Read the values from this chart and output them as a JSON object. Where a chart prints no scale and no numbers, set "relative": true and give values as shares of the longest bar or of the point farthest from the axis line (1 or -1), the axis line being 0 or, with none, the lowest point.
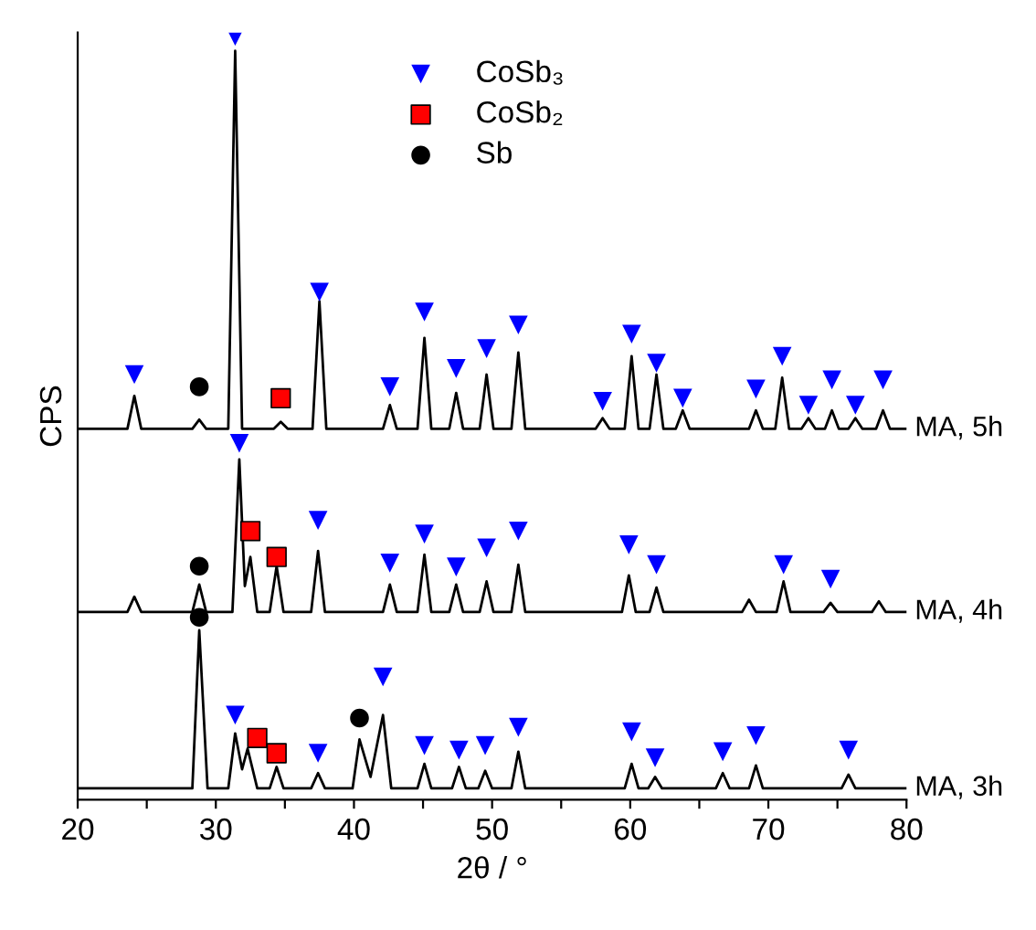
{
  "chart_data": {
    "type": "line",
    "relative": true,
    "xlabel": "2θ / °",
    "ylabel": "CPS",
    "xlim": [
      20,
      80
    ],
    "xticks": [
      20,
      {
        "value": 25,
        "label": null
      },
      30,
      {
        "value": 35,
        "label": null
      },
      40,
      {
        "value": 45,
        "label": null
      },
      50,
      {
        "value": 55,
        "label": null
      },
      60,
      {
        "value": 65,
        "label": null
      },
      70,
      {
        "value": 75,
        "label": null
      },
      80
    ],
    "grid": false,
    "legend": "top right",
    "series": [
      {
        "name": "MA, 5h",
        "color": "#000000",
        "marker": "none",
        "line_style": "solid",
        "x": [
          20,
          23.6,
          24.1,
          24.6,
          28.3,
          28.8,
          29.3,
          30.9,
          31.4,
          31.9,
          34.2,
          34.7,
          35.2,
          37.0,
          37.5,
          38.0,
          42.1,
          42.6,
          43.1,
          44.6,
          45.1,
          45.6,
          46.9,
          47.4,
          47.9,
          49.1,
          49.6,
          50.1,
          51.4,
          51.9,
          52.4,
          57.5,
          58.0,
          58.5,
          59.6,
          60.1,
          60.6,
          61.4,
          61.9,
          62.4,
          63.3,
          63.8,
          64.3,
          68.6,
          69.1,
          69.6,
          70.5,
          71.0,
          71.5,
          72.4,
          72.9,
          73.4,
          74.1,
          74.6,
          75.1,
          75.8,
          76.3,
          76.8,
          77.8,
          78.3,
          78.8,
          80
        ],
        "values": [
          0.486,
          0.486,
          0.529,
          0.486,
          0.486,
          0.498,
          0.486,
          0.486,
          0.981,
          0.486,
          0.486,
          0.495,
          0.486,
          0.486,
          0.653,
          0.486,
          0.486,
          0.517,
          0.486,
          0.486,
          0.605,
          0.486,
          0.486,
          0.533,
          0.486,
          0.486,
          0.557,
          0.486,
          0.486,
          0.586,
          0.486,
          0.486,
          0.5,
          0.486,
          0.486,
          0.581,
          0.486,
          0.486,
          0.557,
          0.486,
          0.486,
          0.51,
          0.486,
          0.486,
          0.51,
          0.486,
          0.486,
          0.553,
          0.486,
          0.486,
          0.5,
          0.486,
          0.486,
          0.51,
          0.486,
          0.486,
          0.5,
          0.486,
          0.486,
          0.51,
          0.486,
          0.486
        ]
      },
      {
        "name": "MA, 4h",
        "color": "#000000",
        "marker": "none",
        "line_style": "solid",
        "x": [
          20,
          23.6,
          24.1,
          24.6,
          28.3,
          28.8,
          29.3,
          31.2,
          31.7,
          32.1,
          32.5,
          33.0,
          33.9,
          34.4,
          34.9,
          36.9,
          37.4,
          37.9,
          42.1,
          42.6,
          43.1,
          44.6,
          45.1,
          45.6,
          46.9,
          47.4,
          47.9,
          49.1,
          49.6,
          50.1,
          51.4,
          51.9,
          52.4,
          59.4,
          59.9,
          60.4,
          61.4,
          61.9,
          62.4,
          68.1,
          68.6,
          69.1,
          70.6,
          71.1,
          71.6,
          74.0,
          74.5,
          75.0,
          77.5,
          78.0,
          78.5,
          80
        ],
        "values": [
          0.246,
          0.246,
          0.266,
          0.246,
          0.246,
          0.282,
          0.246,
          0.246,
          0.446,
          0.28,
          0.318,
          0.246,
          0.246,
          0.306,
          0.246,
          0.246,
          0.326,
          0.246,
          0.246,
          0.282,
          0.246,
          0.246,
          0.321,
          0.246,
          0.246,
          0.282,
          0.246,
          0.246,
          0.286,
          0.246,
          0.246,
          0.308,
          0.246,
          0.246,
          0.294,
          0.246,
          0.246,
          0.278,
          0.246,
          0.246,
          0.262,
          0.246,
          0.246,
          0.286,
          0.246,
          0.246,
          0.258,
          0.246,
          0.246,
          0.26,
          0.246,
          0.246
        ]
      },
      {
        "name": "MA, 3h",
        "color": "#000000",
        "marker": "none",
        "line_style": "solid",
        "x": [
          20,
          28.3,
          28.8,
          29.4,
          30.9,
          31.4,
          31.9,
          32.3,
          33.0,
          33.9,
          34.4,
          34.9,
          36.9,
          37.4,
          37.9,
          39.9,
          40.4,
          41.2,
          42.1,
          42.7,
          44.6,
          45.1,
          45.6,
          47.1,
          47.6,
          48.1,
          49.0,
          49.5,
          50.0,
          51.4,
          51.9,
          52.4,
          59.6,
          60.1,
          60.6,
          61.3,
          61.8,
          62.3,
          66.2,
          66.7,
          67.2,
          68.6,
          69.1,
          69.6,
          75.3,
          75.8,
          76.3,
          80
        ],
        "values": [
          0.015,
          0.015,
          0.222,
          0.015,
          0.015,
          0.087,
          0.04,
          0.067,
          0.015,
          0.015,
          0.043,
          0.015,
          0.015,
          0.035,
          0.015,
          0.015,
          0.079,
          0.03,
          0.111,
          0.015,
          0.015,
          0.047,
          0.015,
          0.015,
          0.043,
          0.015,
          0.015,
          0.038,
          0.015,
          0.015,
          0.063,
          0.015,
          0.015,
          0.047,
          0.015,
          0.015,
          0.03,
          0.015,
          0.015,
          0.035,
          0.015,
          0.015,
          0.045,
          0.015,
          0.015,
          0.033,
          0.015,
          0.015
        ]
      },
      {
        "name": "CoSb₃",
        "type": "scatter",
        "color": "#0000ff",
        "marker": "triangle",
        "x": [
          24.1,
          31.4,
          37.5,
          42.6,
          45.1,
          47.4,
          49.6,
          51.9,
          58.0,
          60.1,
          61.9,
          63.8,
          69.1,
          71.0,
          72.9,
          74.6,
          76.3,
          78.3,
          31.7,
          37.4,
          42.6,
          45.1,
          47.4,
          49.6,
          51.9,
          59.9,
          61.9,
          71.1,
          74.5,
          31.4,
          37.4,
          42.1,
          45.1,
          47.6,
          49.5,
          51.9,
          60.1,
          61.8,
          66.7,
          69.1,
          75.8
        ],
        "values": [
          0.557,
          1.0,
          0.665,
          0.541,
          0.639,
          0.565,
          0.591,
          0.622,
          0.522,
          0.61,
          0.572,
          0.526,
          0.538,
          0.581,
          0.517,
          0.55,
          0.517,
          0.55,
          0.467,
          0.366,
          0.31,
          0.348,
          0.305,
          0.33,
          0.352,
          0.334,
          0.308,
          0.308,
          0.289,
          0.111,
          0.061,
          0.161,
          0.071,
          0.065,
          0.071,
          0.095,
          0.089,
          0.055,
          0.063,
          0.084,
          0.065
        ]
      },
      {
        "name": "CoSb₂",
        "type": "scatter",
        "color": "#ff0000",
        "marker": "square",
        "x": [
          34.7,
          32.5,
          34.4,
          33.0,
          34.4
        ],
        "values": [
          0.526,
          0.352,
          0.318,
          0.081,
          0.061
        ]
      },
      {
        "name": "Sb",
        "type": "scatter",
        "color": "#000000",
        "marker": "circle",
        "x": [
          28.8,
          28.8,
          28.8,
          40.4
        ],
        "values": [
          0.541,
          0.306,
          0.239,
          0.107
        ]
      }
    ]
  }
}
